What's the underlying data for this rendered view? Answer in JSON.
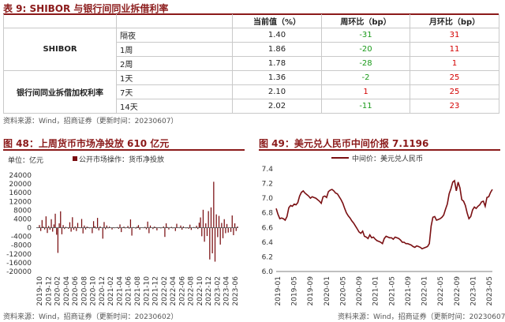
{
  "table9": {
    "title": "表 9: SHIBOR 与银行间同业拆借利率",
    "columns": [
      "",
      "",
      "当前值（%）",
      "周环比（bp）",
      "月环比（bp）"
    ],
    "groups": [
      {
        "label": "SHIBOR",
        "rows": [
          {
            "term": "隔夜",
            "value": "1.40",
            "wow": "-31",
            "mom": "31"
          },
          {
            "term": "1周",
            "value": "1.86",
            "wow": "-20",
            "mom": "11"
          },
          {
            "term": "2周",
            "value": "1.78",
            "wow": "-28",
            "mom": "1"
          }
        ]
      },
      {
        "label": "银行间同业拆借加权利率",
        "rows": [
          {
            "term": "1天",
            "value": "1.36",
            "wow": "-2",
            "mom": "25"
          },
          {
            "term": "7天",
            "value": "2.10",
            "wow": "1",
            "mom": "25"
          },
          {
            "term": "14天",
            "value": "2.02",
            "wow": "-11",
            "mom": "23"
          }
        ]
      }
    ],
    "source": "资料来源：Wind，招商证券（更新时间：20230607）"
  },
  "colors": {
    "accent": "#8b1a1a",
    "bar": "#7a0f12",
    "negative": "#1a9a1a",
    "positive": "#d40000"
  },
  "chart_data": [
    {
      "type": "bar",
      "title": "图 48：上周货币市场净投放 610 亿元",
      "unit_label": "单位：亿元",
      "legend": "公开市场操作：货币净投放",
      "ylim": [
        -20000,
        24000
      ],
      "yticks": [
        24000,
        20000,
        16000,
        12000,
        8000,
        4000,
        0,
        -4000,
        -8000,
        -12000,
        -16000,
        -20000
      ],
      "xticks": [
        "2019-10",
        "2019-12",
        "2020-02",
        "2020-04",
        "2020-06",
        "2020-08",
        "2020-10",
        "2020-12",
        "2021-02",
        "2021-04",
        "2021-06",
        "2021-08",
        "2021-10",
        "2021-12",
        "2022-02",
        "2022-04",
        "2022-06",
        "2022-08",
        "2022-10",
        "2022-12",
        "2023-02",
        "2023-04",
        "2023-06"
      ],
      "series": [
        {
          "name": "公开市场操作：货币净投放",
          "values": [
            0,
            0,
            1200,
            -1500,
            3500,
            500,
            -800,
            5200,
            -2400,
            800,
            -900,
            3900,
            -1800,
            1500,
            6400,
            -3200,
            -11500,
            2000,
            7500,
            -3000,
            1200,
            -600,
            400,
            0,
            -500,
            2500,
            -1800,
            4800,
            -900,
            600,
            -1500,
            2200,
            200,
            -200,
            4000,
            -2600,
            1000,
            -800,
            500,
            300,
            -300,
            0,
            -2500,
            3000,
            700,
            -400,
            4500,
            -1200,
            600,
            0,
            -5000,
            2600,
            -700,
            1000,
            -300,
            500,
            0,
            -800,
            200,
            -200,
            0,
            300,
            -500,
            1500,
            -2000,
            200,
            500,
            -300,
            0,
            800,
            -400,
            3800,
            -3600,
            300,
            0,
            -400,
            500,
            1200,
            -900,
            100,
            0,
            -200,
            400,
            -700,
            2800,
            -2500,
            1000,
            0,
            -600,
            500,
            300,
            -1200,
            100,
            200,
            -300,
            0,
            600,
            -4200,
            2000,
            300,
            -800,
            0,
            400,
            -300,
            100,
            -1500,
            1800,
            0,
            -200,
            1000,
            -900,
            600,
            0,
            -300,
            200,
            -500,
            1400,
            -1000,
            0,
            300,
            -200,
            900,
            -600,
            2300,
            4700,
            -3900,
            8200,
            -6400,
            2000,
            -3800,
            7600,
            -14500,
            9300,
            -11700,
            21000,
            -15500,
            6100,
            -4300,
            5400,
            -7700,
            2200,
            -4800,
            3900,
            -2500,
            1700,
            -2200,
            0,
            -1900,
            5600,
            -3400,
            2000,
            -1500,
            610
          ]
        }
      ]
    },
    {
      "type": "line",
      "title": "图 49：美元兑人民币中间价报 7.1196",
      "legend": "中间价：美元兑人民币",
      "ylim": [
        6.0,
        7.4
      ],
      "yticks": [
        7.4,
        7.2,
        7.0,
        6.8,
        6.6,
        6.4,
        6.2,
        6.0
      ],
      "xticks": [
        "2019-01",
        "2019-05",
        "2019-09",
        "2020-01",
        "2020-05",
        "2020-09",
        "2021-01",
        "2021-05",
        "2021-09",
        "2022-01",
        "2022-05",
        "2022-09",
        "2023-01",
        "2023-05"
      ],
      "series": [
        {
          "name": "中间价：美元兑人民币",
          "values": [
            6.86,
            6.78,
            6.72,
            6.73,
            6.72,
            6.7,
            6.75,
            6.87,
            6.9,
            6.89,
            6.92,
            6.91,
            6.94,
            7.03,
            7.08,
            7.1,
            7.07,
            7.05,
            7.03,
            7.0,
            7.02,
            7.01,
            7.0,
            6.98,
            6.96,
            6.93,
            7.02,
            7.03,
            7.01,
            7.09,
            7.11,
            7.12,
            7.1,
            7.07,
            7.06,
            7.02,
            6.98,
            6.93,
            6.86,
            6.8,
            6.76,
            6.73,
            6.69,
            6.66,
            6.62,
            6.58,
            6.54,
            6.52,
            6.55,
            6.48,
            6.47,
            6.45,
            6.5,
            6.46,
            6.47,
            6.44,
            6.42,
            6.41,
            6.4,
            6.38,
            6.45,
            6.48,
            6.47,
            6.46,
            6.46,
            6.44,
            6.47,
            6.46,
            6.45,
            6.43,
            6.4,
            6.4,
            6.38,
            6.38,
            6.37,
            6.36,
            6.34,
            6.33,
            6.35,
            6.34,
            6.33,
            6.31,
            6.32,
            6.33,
            6.34,
            6.38,
            6.62,
            6.74,
            6.75,
            6.7,
            6.71,
            6.72,
            6.74,
            6.77,
            6.85,
            6.92,
            7.06,
            7.13,
            7.22,
            7.24,
            7.1,
            7.22,
            7.14,
            6.98,
            6.96,
            6.9,
            6.8,
            6.72,
            6.75,
            6.84,
            6.88,
            6.86,
            6.89,
            6.91,
            6.95,
            6.96,
            6.89,
            7.01,
            7.02,
            7.08,
            7.12
          ]
        }
      ]
    }
  ],
  "chart48_source": "资料来源：Wind，招商证券（更新时间：20230602）",
  "chart49_source": "资料来源：Wind，招商证券（更新时间：20230607）"
}
